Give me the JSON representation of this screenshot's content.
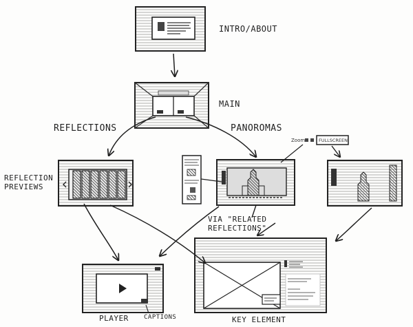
{
  "labels": {
    "intro": "INTRO/ABOUT",
    "main": "MAIN",
    "reflections": "REFLECTIONS",
    "panoramas": "PANOROMAS",
    "reflection_previews_1": "REFLECTION",
    "reflection_previews_2": "PREVIEWS",
    "zoom": "Zoom",
    "fullscreen": "FULLSCREEN",
    "via_1": "VIA \"RELATED",
    "via_2": "REFLECTIONS\"",
    "player": "PLAYER",
    "captions": "CAPTIONS",
    "key_element": "KEY ELEMENT"
  }
}
